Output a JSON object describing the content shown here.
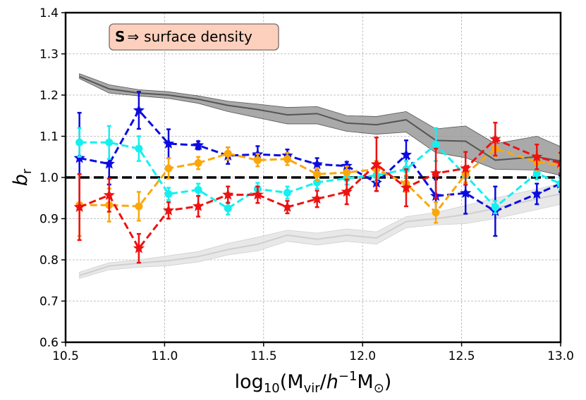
{
  "chart_data": {
    "type": "line",
    "title": "",
    "xlabel": "log10(Mvir/h^-1 M⊙)",
    "xlabel_parts": {
      "pre": "log",
      "pre_sub": "10",
      "open": "(M",
      "sub1": "vir",
      "slash": "/",
      "h": "h",
      "sup": "−1",
      "M": "M",
      "sub2": "⊙",
      "close": ")"
    },
    "ylabel": "b_r",
    "ylabel_parts": {
      "main": "b",
      "sub": "r"
    },
    "xlim": [
      10.5,
      13.0
    ],
    "ylim": [
      0.6,
      1.4
    ],
    "xticks": [
      10.5,
      11.0,
      11.5,
      12.0,
      12.5,
      13.0
    ],
    "xtick_labels": [
      "10.5",
      "11.0",
      "11.5",
      "12.0",
      "12.5",
      "13.0"
    ],
    "yticks": [
      0.6,
      0.7,
      0.8,
      0.9,
      1.0,
      1.1,
      1.2,
      1.3,
      1.4
    ],
    "ytick_labels": [
      "0.6",
      "0.7",
      "0.8",
      "0.9",
      "1.0",
      "1.1",
      "1.2",
      "1.3",
      "1.4"
    ],
    "grid": true,
    "annotation": {
      "bold": "S",
      "arrow": "⇒",
      "text": "surface density",
      "location": "top-left"
    },
    "reference_line": {
      "y": 1.0,
      "color": "#000000",
      "style": "dashed"
    },
    "bands": [
      {
        "name": "upper envelope",
        "color": "#555555",
        "fill": "#9a9a9a",
        "x": [
          10.57,
          10.72,
          10.87,
          11.02,
          11.17,
          11.32,
          11.47,
          11.62,
          11.77,
          11.92,
          12.07,
          12.22,
          12.37,
          12.52,
          12.67,
          12.88,
          13.0
        ],
        "y": [
          1.245,
          1.215,
          1.205,
          1.2,
          1.19,
          1.175,
          1.165,
          1.152,
          1.155,
          1.132,
          1.128,
          1.14,
          1.09,
          1.088,
          1.042,
          1.05,
          1.04
        ],
        "lower": [
          1.24,
          1.205,
          1.198,
          1.192,
          1.18,
          1.16,
          1.145,
          1.13,
          1.13,
          1.112,
          1.105,
          1.11,
          1.06,
          1.048,
          1.02,
          1.018,
          1.005
        ],
        "upper": [
          1.252,
          1.225,
          1.213,
          1.208,
          1.198,
          1.185,
          1.178,
          1.17,
          1.172,
          1.15,
          1.148,
          1.16,
          1.118,
          1.125,
          1.082,
          1.1,
          1.075
        ]
      },
      {
        "name": "lower envelope",
        "color": "#cfcfcf",
        "fill": "#e4e4e4",
        "x": [
          10.57,
          10.72,
          10.87,
          11.02,
          11.17,
          11.32,
          11.47,
          11.62,
          11.77,
          11.92,
          12.07,
          12.22,
          12.37,
          12.52,
          12.67,
          12.88,
          13.0
        ],
        "y": [
          0.762,
          0.785,
          0.792,
          0.798,
          0.808,
          0.825,
          0.838,
          0.86,
          0.85,
          0.86,
          0.853,
          0.893,
          0.9,
          0.91,
          0.925,
          0.948,
          0.96
        ],
        "lower": [
          0.755,
          0.776,
          0.782,
          0.786,
          0.795,
          0.812,
          0.822,
          0.845,
          0.836,
          0.845,
          0.838,
          0.878,
          0.885,
          0.888,
          0.9,
          0.922,
          0.935
        ],
        "upper": [
          0.77,
          0.793,
          0.8,
          0.81,
          0.82,
          0.84,
          0.855,
          0.872,
          0.865,
          0.875,
          0.868,
          0.905,
          0.915,
          0.932,
          0.95,
          0.972,
          0.985
        ]
      }
    ],
    "series": [
      {
        "name": "blue",
        "color": "#0b0be0",
        "marker": "star",
        "x": [
          10.57,
          10.72,
          10.87,
          11.02,
          11.17,
          11.32,
          11.47,
          11.62,
          11.77,
          11.92,
          12.07,
          12.22,
          12.37,
          12.52,
          12.67,
          12.88,
          13.0
        ],
        "y": [
          1.047,
          1.033,
          1.163,
          1.082,
          1.078,
          1.053,
          1.056,
          1.053,
          1.032,
          1.028,
          0.987,
          1.055,
          0.955,
          0.962,
          0.918,
          0.96,
          0.985
        ],
        "err": [
          0.11,
          0.05,
          0.045,
          0.035,
          0.01,
          0.02,
          0.02,
          0.015,
          0.015,
          0.01,
          0.02,
          0.035,
          0.04,
          0.05,
          0.06,
          0.025,
          0.02
        ]
      },
      {
        "name": "cyan",
        "color": "#14f0f0",
        "marker": "circle",
        "x": [
          10.57,
          10.72,
          10.87,
          11.02,
          11.17,
          11.32,
          11.47,
          11.62,
          11.77,
          11.92,
          12.07,
          12.22,
          12.37,
          12.52,
          12.67,
          12.88,
          13.0
        ],
        "y": [
          1.085,
          1.085,
          1.07,
          0.96,
          0.97,
          0.925,
          0.972,
          0.963,
          0.988,
          0.998,
          1.005,
          1.02,
          1.08,
          1.005,
          0.928,
          1.01,
          0.985
        ],
        "err": [
          0.035,
          0.04,
          0.03,
          0.015,
          0.015,
          0.015,
          0.015,
          0.015,
          0.015,
          0.015,
          0.015,
          0.02,
          0.04,
          0.02,
          0.015,
          0.015,
          0.015
        ]
      },
      {
        "name": "orange",
        "color": "#fba70a",
        "marker": "circle",
        "x": [
          10.57,
          10.72,
          10.87,
          11.02,
          11.17,
          11.32,
          11.47,
          11.62,
          11.77,
          11.92,
          12.07,
          12.22,
          12.37,
          12.52,
          12.67,
          12.88,
          13.0
        ],
        "y": [
          0.933,
          0.933,
          0.93,
          1.022,
          1.035,
          1.058,
          1.042,
          1.045,
          1.008,
          1.012,
          1.02,
          0.985,
          0.915,
          1.008,
          1.07,
          1.038,
          1.03
        ],
        "err": [
          0.075,
          0.04,
          0.035,
          0.025,
          0.015,
          0.015,
          0.015,
          0.015,
          0.015,
          0.015,
          0.02,
          0.02,
          0.025,
          0.02,
          0.02,
          0.02,
          0.02
        ]
      },
      {
        "name": "red",
        "color": "#ee1111",
        "marker": "star",
        "x": [
          10.57,
          10.72,
          10.87,
          11.02,
          11.17,
          11.32,
          11.47,
          11.62,
          11.77,
          11.92,
          12.07,
          12.22,
          12.37,
          12.52,
          12.67,
          12.88,
          13.0
        ],
        "y": [
          0.928,
          0.957,
          0.828,
          0.92,
          0.93,
          0.958,
          0.958,
          0.928,
          0.948,
          0.965,
          1.032,
          0.975,
          1.01,
          1.022,
          1.093,
          1.05,
          1.035
        ],
        "err": [
          0.08,
          0.04,
          0.035,
          0.02,
          0.025,
          0.02,
          0.02,
          0.015,
          0.02,
          0.03,
          0.065,
          0.045,
          0.06,
          0.04,
          0.04,
          0.03,
          0.025
        ]
      }
    ]
  }
}
